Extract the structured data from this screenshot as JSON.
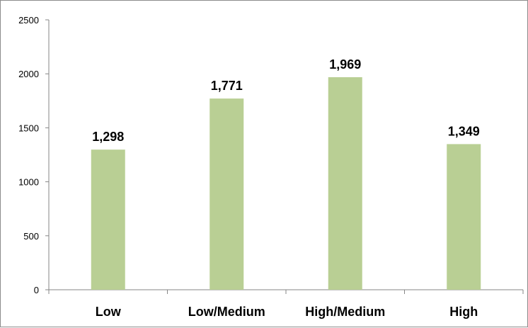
{
  "chart_data": {
    "type": "bar",
    "title": "",
    "xlabel": "",
    "ylabel": "",
    "categories": [
      "Low",
      "Low/Medium",
      "High/Medium",
      "High"
    ],
    "values": [
      1298,
      1771,
      1969,
      1349
    ],
    "data_labels": [
      "1,298",
      "1,771",
      "1,969",
      "1,349"
    ],
    "ylim": [
      0,
      2500
    ],
    "yticks": [
      0,
      500,
      1000,
      1500,
      2000,
      2500
    ],
    "ytick_labels": [
      "0",
      "500",
      "1000",
      "1500",
      "2000",
      "2500"
    ],
    "grid": false,
    "legend": "none",
    "bar_color": "#b9cf94",
    "axis_color": "#868686"
  }
}
